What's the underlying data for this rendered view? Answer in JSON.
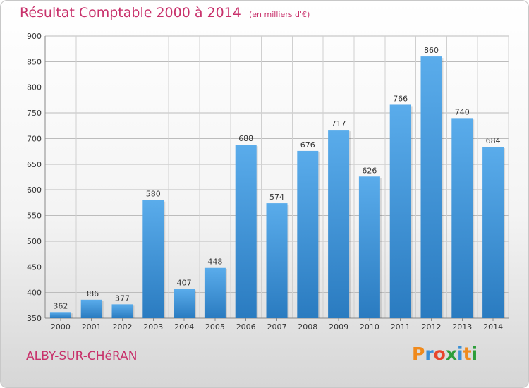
{
  "header": {
    "title": "Résultat Comptable 2000 à 2014",
    "subtitle": "(en milliers d'€)"
  },
  "footer": {
    "place": "ALBY-SUR-CHéRAN",
    "logo": "Proxiti"
  },
  "colors": {
    "title": "#c8316b",
    "bar_light": "#5aaceb",
    "bar_dark": "#2a7bc0",
    "logo_letters": [
      "#f08a1c",
      "#3a8fd6",
      "#e8452c",
      "#2d9e3a",
      "#3a8fd6",
      "#f08a1c",
      "#2d9e3a"
    ]
  },
  "chart_data": {
    "type": "bar",
    "categories": [
      "2000",
      "2001",
      "2002",
      "2003",
      "2004",
      "2005",
      "2006",
      "2007",
      "2008",
      "2009",
      "2010",
      "2011",
      "2012",
      "2013",
      "2014"
    ],
    "values": [
      362,
      386,
      377,
      580,
      407,
      448,
      688,
      574,
      676,
      717,
      626,
      766,
      860,
      740,
      684
    ],
    "title": "Résultat Comptable 2000 à 2014",
    "xlabel": "",
    "ylabel": "",
    "ylim": [
      350,
      900
    ],
    "yticks": [
      350,
      400,
      450,
      500,
      550,
      600,
      650,
      700,
      750,
      800,
      850,
      900
    ],
    "grid": true,
    "data_labels": true
  }
}
